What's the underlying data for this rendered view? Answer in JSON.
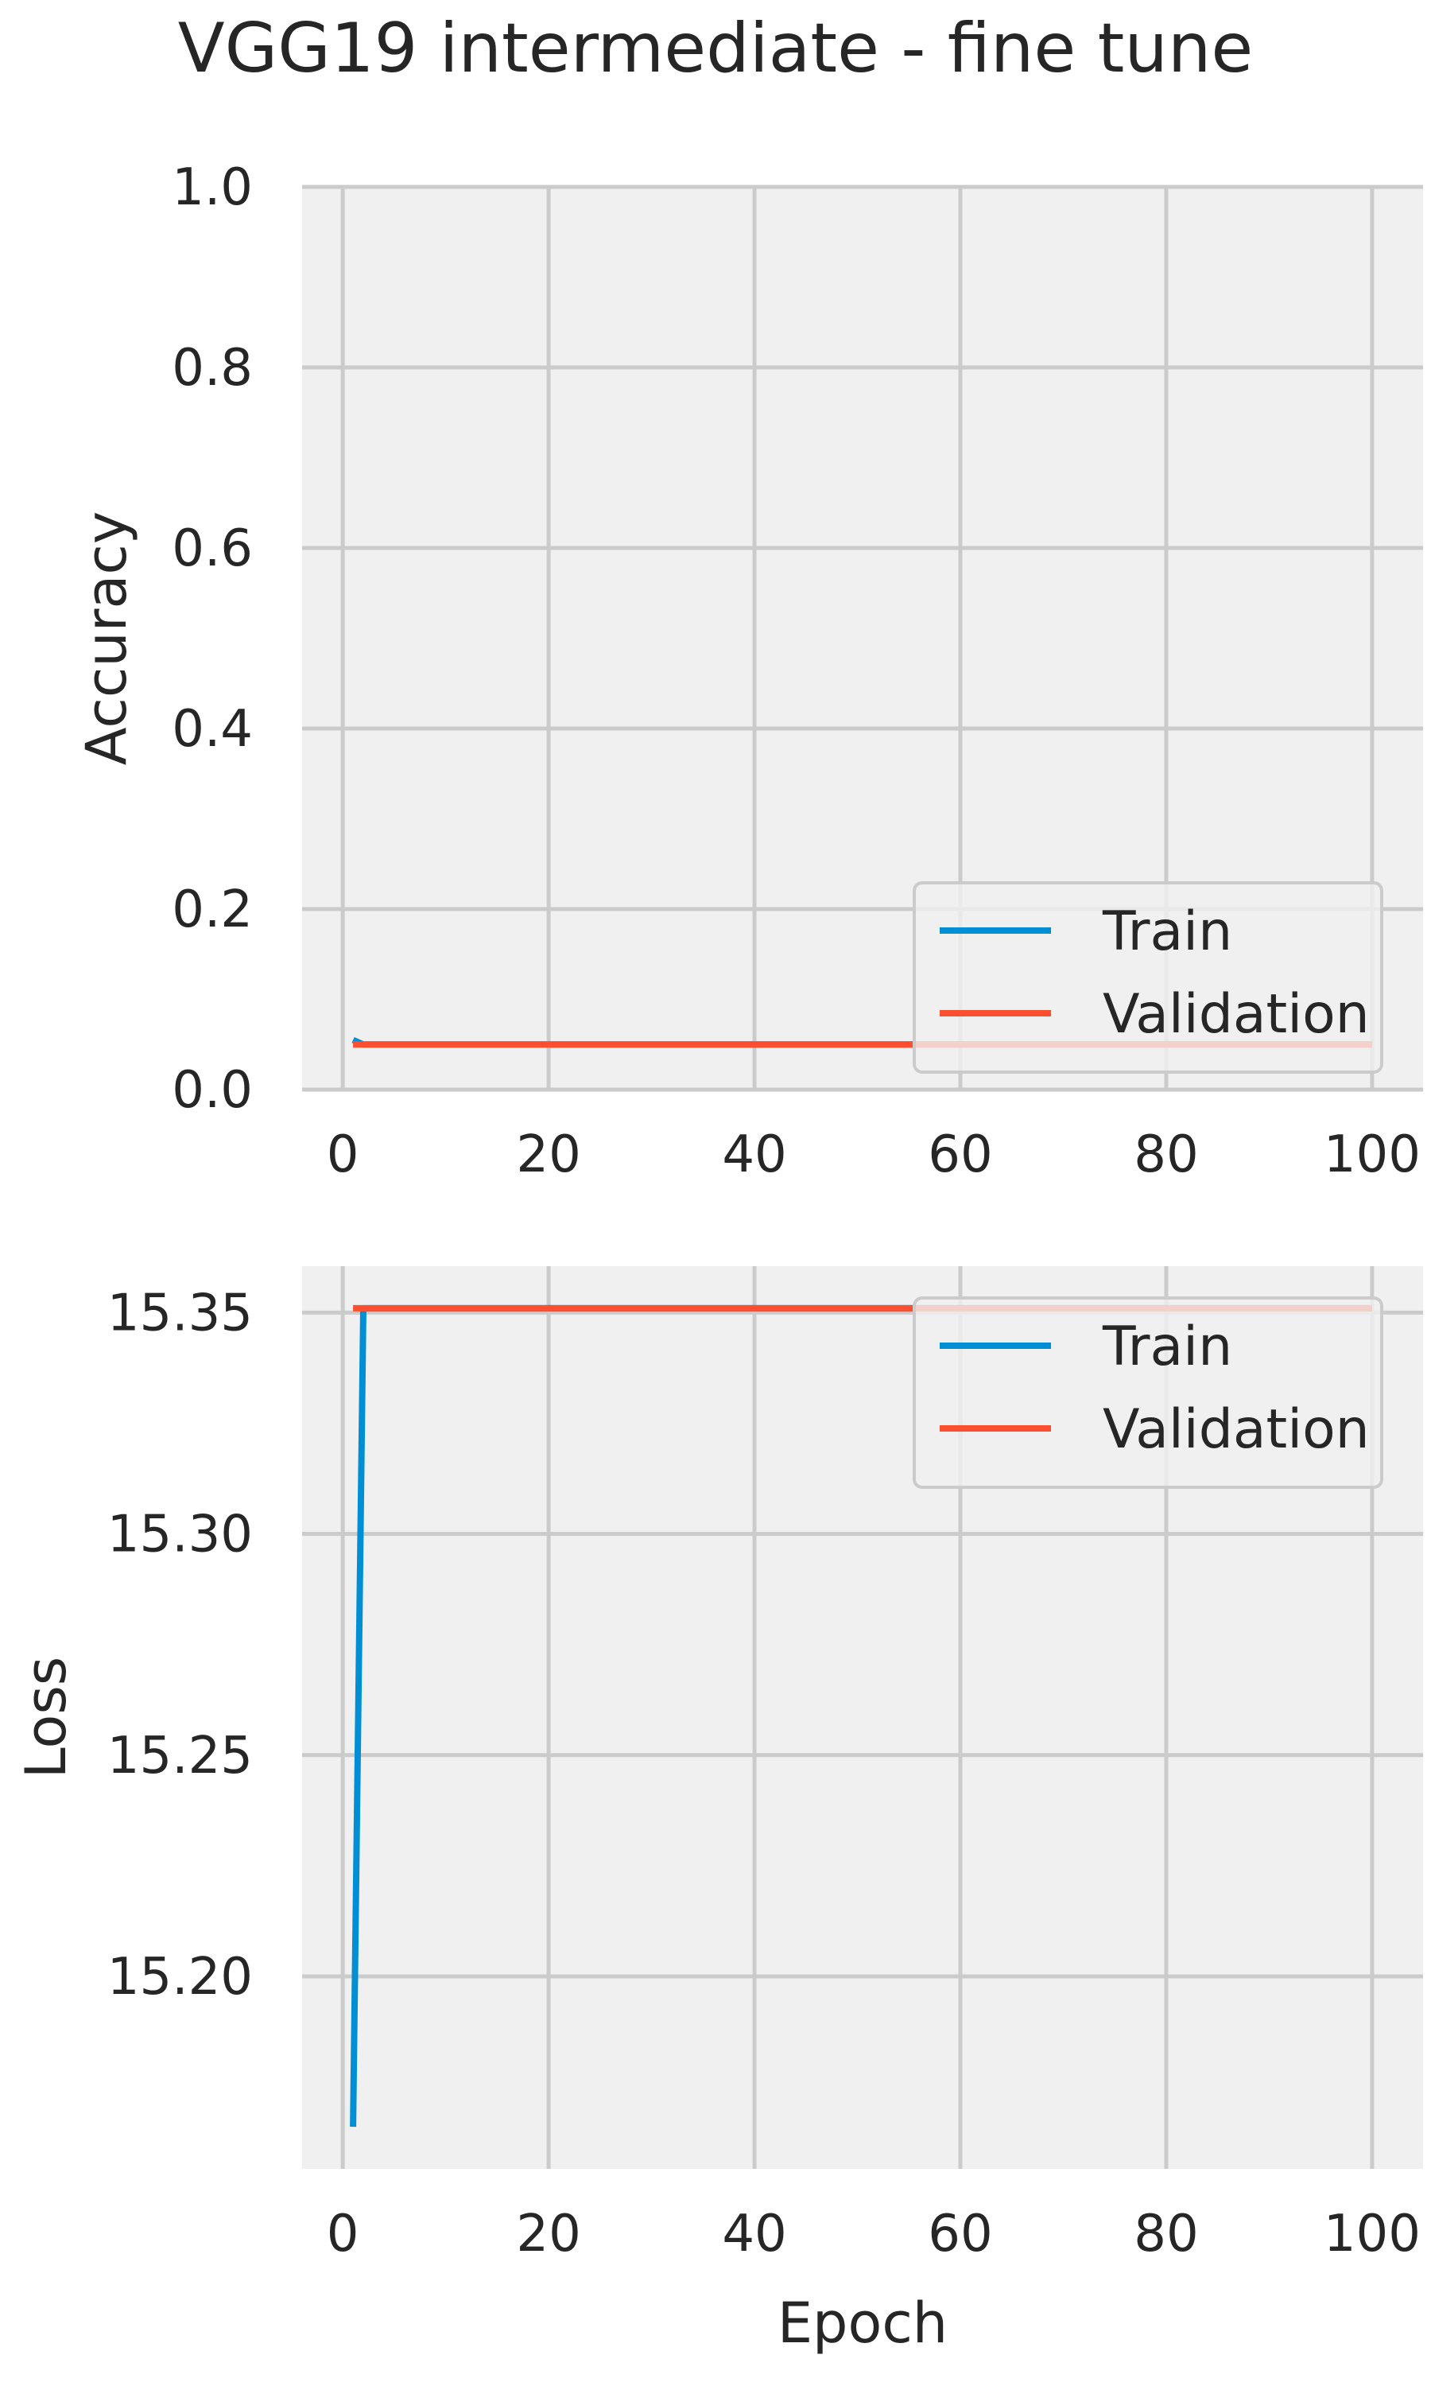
{
  "figure": {
    "title": "VGG19 intermediate - fine tune"
  },
  "colors": {
    "train": "#008FD5",
    "validation": "#FC4F30",
    "panel_bg": "#F0F0F0",
    "grid": "#CBCBCB",
    "text": "#262626"
  },
  "chart_data": [
    {
      "type": "line",
      "title": "",
      "xlabel": "",
      "ylabel": "Accuracy",
      "xlim": [
        -3.95,
        104.95
      ],
      "ylim": [
        0.0,
        1.0
      ],
      "xticks": [
        0,
        20,
        40,
        60,
        80,
        100
      ],
      "xtick_labels": [
        "0",
        "20",
        "40",
        "60",
        "80",
        "100"
      ],
      "yticks": [
        0.0,
        0.2,
        0.4,
        0.6,
        0.8,
        1.0
      ],
      "ytick_labels": [
        "0.0",
        "0.2",
        "0.4",
        "0.6",
        "0.8",
        "1.0"
      ],
      "grid": true,
      "legend_position": "lower-right",
      "series": [
        {
          "name": "Train",
          "color_key": "train",
          "x": [
            1,
            2,
            100
          ],
          "y": [
            0.055,
            0.05,
            0.05
          ]
        },
        {
          "name": "Validation",
          "color_key": "validation",
          "x": [
            1,
            100
          ],
          "y": [
            0.05,
            0.05
          ]
        }
      ]
    },
    {
      "type": "line",
      "title": "",
      "xlabel": "Epoch",
      "ylabel": "Loss",
      "xlim": [
        -3.95,
        104.95
      ],
      "ylim": [
        15.1565,
        15.3605
      ],
      "xticks": [
        0,
        20,
        40,
        60,
        80,
        100
      ],
      "xtick_labels": [
        "0",
        "20",
        "40",
        "60",
        "80",
        "100"
      ],
      "yticks": [
        15.2,
        15.25,
        15.3,
        15.35
      ],
      "ytick_labels": [
        "15.20",
        "15.25",
        "15.30",
        "15.35"
      ],
      "grid": true,
      "legend_position": "upper-right",
      "series": [
        {
          "name": "Train",
          "color_key": "train",
          "x": [
            1,
            2,
            100
          ],
          "y": [
            15.166,
            15.351,
            15.351
          ]
        },
        {
          "name": "Validation",
          "color_key": "validation",
          "x": [
            1,
            100
          ],
          "y": [
            15.351,
            15.351
          ]
        }
      ]
    }
  ]
}
